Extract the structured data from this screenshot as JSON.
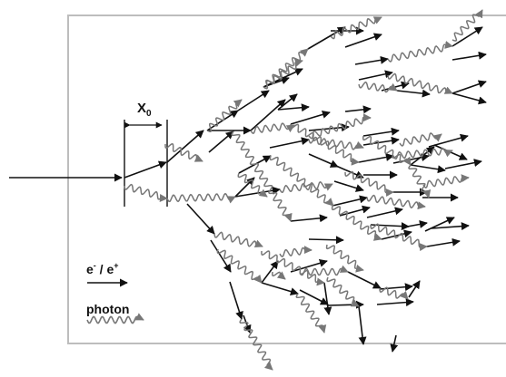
{
  "title": "",
  "legend": {
    "electron_label": "e",
    "electron_minus": "-",
    "electron_sep": " / e",
    "electron_plus": "+",
    "photon_label": "photon"
  },
  "labels": {
    "radiation_length_main": "X",
    "radiation_length_sub": "0"
  },
  "colors": {
    "electron": "#111111",
    "photon": "#777777",
    "detector_border": "#bdbdbd"
  }
}
